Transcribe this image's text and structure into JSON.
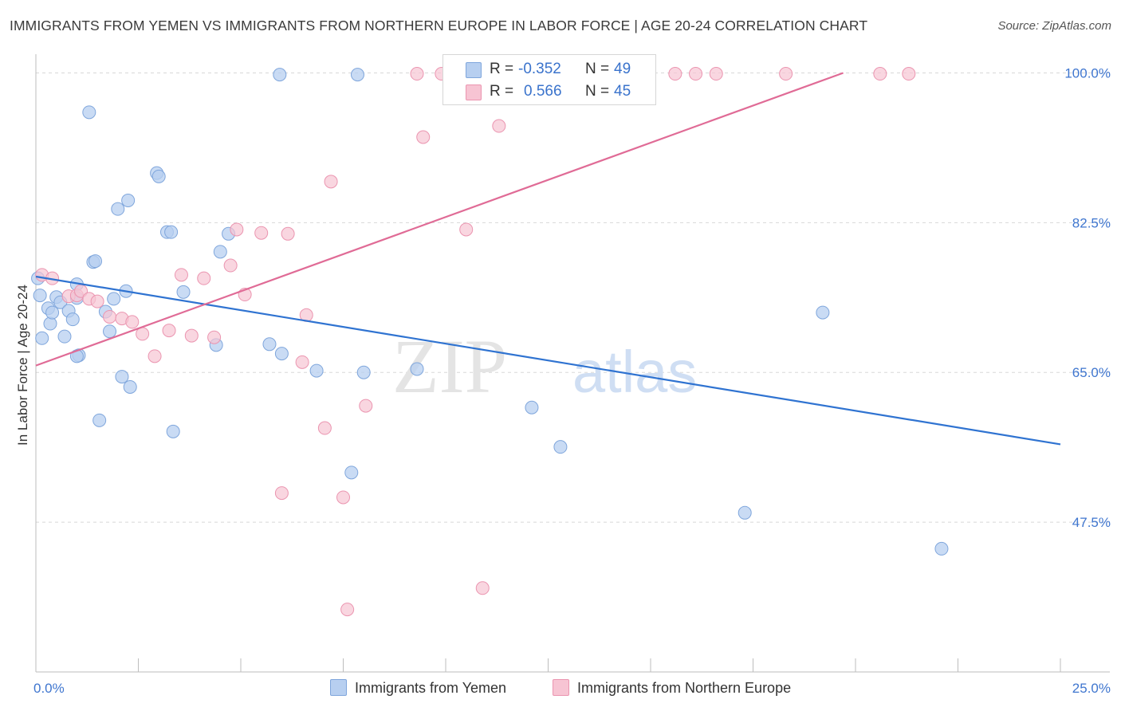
{
  "header": {
    "title": "IMMIGRANTS FROM YEMEN VS IMMIGRANTS FROM NORTHERN EUROPE IN LABOR FORCE | AGE 20-24 CORRELATION CHART",
    "source": "Source: ZipAtlas.com"
  },
  "watermark": {
    "zip": "ZIP",
    "atlas": "atlas"
  },
  "legend": {
    "rows": [
      {
        "r_label": "R =",
        "r_value": "-0.352",
        "n_label": "N =",
        "n_value": "49"
      },
      {
        "r_label": "R =",
        "r_value": "0.566",
        "n_label": "N =",
        "n_value": "45"
      }
    ]
  },
  "colors": {
    "blue_fill": "#b7cff0",
    "blue_stroke": "#7fa6dc",
    "blue_line": "#2f73d1",
    "pink_fill": "#f7c4d3",
    "pink_stroke": "#eb95b0",
    "pink_line": "#e06b96",
    "tick_label": "#3f76cf",
    "grid": "#d8d8d8"
  },
  "chart_data": {
    "type": "scatter",
    "title": "IMMIGRANTS FROM YEMEN VS IMMIGRANTS FROM NORTHERN EUROPE IN LABOR FORCE | AGE 20-24 CORRELATION CHART",
    "xlabel": "",
    "ylabel": "In Labor Force | Age 20-24",
    "xlim": [
      0,
      25
    ],
    "ylim": [
      30,
      102
    ],
    "x_tick_labels": [
      "0.0%",
      "25.0%"
    ],
    "y_ticks": [
      47.5,
      65.0,
      82.5,
      100.0
    ],
    "y_tick_labels": [
      "47.5%",
      "65.0%",
      "82.5%",
      "100.0%"
    ],
    "grid": true,
    "legend_position": "top-center",
    "series": [
      {
        "name": "Immigrants from Yemen",
        "color": "#7fa6dc",
        "r": -0.352,
        "n": 49,
        "trend": {
          "x": [
            0,
            25
          ],
          "y": [
            76.2,
            56.6
          ]
        },
        "points": [
          [
            0.1,
            74.0
          ],
          [
            0.15,
            69.0
          ],
          [
            0.3,
            72.5
          ],
          [
            0.35,
            70.7
          ],
          [
            0.4,
            72.0
          ],
          [
            0.5,
            73.8
          ],
          [
            0.6,
            73.2
          ],
          [
            0.7,
            69.2
          ],
          [
            0.8,
            72.2
          ],
          [
            0.9,
            71.2
          ],
          [
            1.0,
            73.7
          ],
          [
            1.05,
            67.0
          ],
          [
            1.0,
            66.9
          ],
          [
            1.0,
            75.3
          ],
          [
            1.3,
            95.4
          ],
          [
            1.4,
            77.9
          ],
          [
            1.45,
            78.0
          ],
          [
            1.55,
            59.4
          ],
          [
            1.7,
            72.1
          ],
          [
            1.8,
            69.8
          ],
          [
            1.9,
            73.6
          ],
          [
            2.0,
            84.1
          ],
          [
            2.1,
            64.5
          ],
          [
            2.2,
            74.5
          ],
          [
            2.25,
            85.1
          ],
          [
            2.3,
            63.3
          ],
          [
            2.95,
            88.3
          ],
          [
            3.0,
            87.9
          ],
          [
            3.2,
            81.4
          ],
          [
            3.3,
            81.4
          ],
          [
            3.35,
            58.1
          ],
          [
            3.6,
            74.4
          ],
          [
            4.4,
            68.2
          ],
          [
            4.5,
            79.1
          ],
          [
            4.7,
            81.2
          ],
          [
            5.7,
            68.3
          ],
          [
            5.95,
            99.8
          ],
          [
            6.0,
            67.2
          ],
          [
            6.85,
            65.2
          ],
          [
            7.7,
            53.3
          ],
          [
            7.85,
            99.8
          ],
          [
            8.0,
            65.0
          ],
          [
            9.3,
            65.4
          ],
          [
            12.1,
            60.9
          ],
          [
            12.8,
            56.3
          ],
          [
            17.3,
            48.6
          ],
          [
            19.2,
            72.0
          ],
          [
            22.1,
            44.4
          ],
          [
            0.05,
            76.0
          ]
        ]
      },
      {
        "name": "Immigrants from Northern Europe",
        "color": "#eb95b0",
        "r": 0.566,
        "n": 45,
        "trend": {
          "x": [
            0,
            19.7
          ],
          "y": [
            65.8,
            100.0
          ]
        },
        "points": [
          [
            0.15,
            76.4
          ],
          [
            0.4,
            76.0
          ],
          [
            0.8,
            73.9
          ],
          [
            1.0,
            74.0
          ],
          [
            1.1,
            74.5
          ],
          [
            1.3,
            73.6
          ],
          [
            1.5,
            73.3
          ],
          [
            1.8,
            71.5
          ],
          [
            2.1,
            71.3
          ],
          [
            2.35,
            70.9
          ],
          [
            2.6,
            69.5
          ],
          [
            2.9,
            66.9
          ],
          [
            3.25,
            69.9
          ],
          [
            3.55,
            76.4
          ],
          [
            3.8,
            69.3
          ],
          [
            4.1,
            76.0
          ],
          [
            4.35,
            69.1
          ],
          [
            4.75,
            77.5
          ],
          [
            4.9,
            81.7
          ],
          [
            5.1,
            74.1
          ],
          [
            5.5,
            81.3
          ],
          [
            6.0,
            50.9
          ],
          [
            6.15,
            81.2
          ],
          [
            6.5,
            66.2
          ],
          [
            6.6,
            71.7
          ],
          [
            7.05,
            58.5
          ],
          [
            7.2,
            87.3
          ],
          [
            7.5,
            50.4
          ],
          [
            7.6,
            37.3
          ],
          [
            8.05,
            61.1
          ],
          [
            9.3,
            99.9
          ],
          [
            9.45,
            92.5
          ],
          [
            9.9,
            99.9
          ],
          [
            10.3,
            99.9
          ],
          [
            10.5,
            81.7
          ],
          [
            10.6,
            99.9
          ],
          [
            10.9,
            39.8
          ],
          [
            11.1,
            99.9
          ],
          [
            11.3,
            93.8
          ],
          [
            15.6,
            99.9
          ],
          [
            16.1,
            99.9
          ],
          [
            16.6,
            99.9
          ],
          [
            18.3,
            99.9
          ],
          [
            20.6,
            99.9
          ],
          [
            21.3,
            99.9
          ]
        ]
      }
    ]
  },
  "bottom_legend": {
    "items": [
      {
        "label": "Immigrants from Yemen"
      },
      {
        "label": "Immigrants from Northern Europe"
      }
    ]
  }
}
